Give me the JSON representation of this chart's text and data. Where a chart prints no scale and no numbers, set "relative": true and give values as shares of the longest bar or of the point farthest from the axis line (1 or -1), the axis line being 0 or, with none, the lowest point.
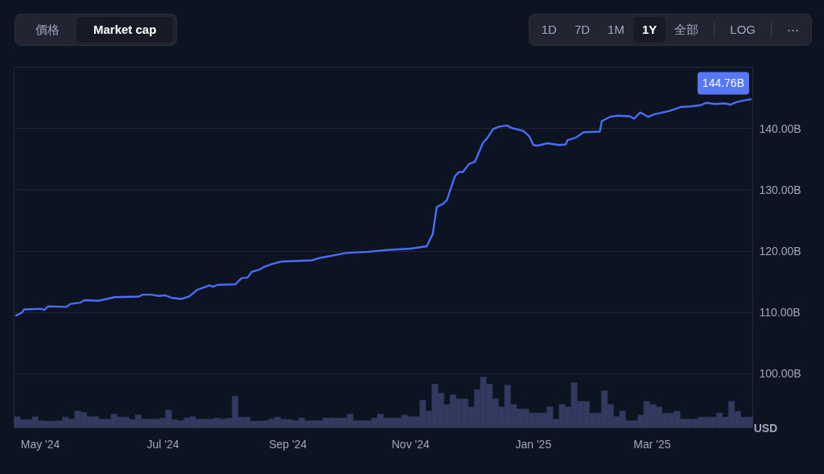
{
  "chart_data": [
    {
      "type": "line",
      "color": "#4a6cf7",
      "x": [
        "2024-04-19",
        "2024-04-22",
        "2024-04-23",
        "2024-05-01",
        "2024-05-03",
        "2024-05-05",
        "2024-05-14",
        "2024-05-16",
        "2024-05-21",
        "2024-05-23",
        "2024-05-30",
        "2024-06-07",
        "2024-06-19",
        "2024-06-21",
        "2024-06-25",
        "2024-06-29",
        "2024-07-02",
        "2024-07-05",
        "2024-07-10",
        "2024-07-14",
        "2024-07-18",
        "2024-07-24",
        "2024-07-26",
        "2024-07-28",
        "2024-08-06",
        "2024-08-09",
        "2024-08-12",
        "2024-08-14",
        "2024-08-18",
        "2024-08-20",
        "2024-08-24",
        "2024-08-29",
        "2024-09-13",
        "2024-09-17",
        "2024-09-30",
        "2024-10-11",
        "2024-10-21",
        "2024-11-01",
        "2024-11-09",
        "2024-11-12",
        "2024-11-14",
        "2024-11-17",
        "2024-11-19",
        "2024-11-23",
        "2024-11-25",
        "2024-11-27",
        "2024-11-30",
        "2024-12-03",
        "2024-12-07",
        "2024-12-09",
        "2024-12-12",
        "2024-12-15",
        "2024-12-19",
        "2024-12-21",
        "2024-12-27",
        "2024-12-30",
        "2025-01-01",
        "2025-01-03",
        "2025-01-08",
        "2025-01-14",
        "2025-01-17",
        "2025-01-18",
        "2025-01-22",
        "2025-01-26",
        "2025-02-03",
        "2025-02-04",
        "2025-02-08",
        "2025-02-12",
        "2025-02-18",
        "2025-02-20",
        "2025-02-23",
        "2025-02-25",
        "2025-02-27",
        "2025-03-02",
        "2025-03-10",
        "2025-03-15",
        "2025-03-20",
        "2025-03-25",
        "2025-03-28",
        "2025-04-01",
        "2025-04-06",
        "2025-04-09",
        "2025-04-12",
        "2025-04-16",
        "2025-04-19"
      ],
      "values": [
        109.5,
        110.0,
        110.5,
        110.6,
        110.4,
        111.0,
        110.9,
        111.4,
        111.6,
        112.0,
        111.9,
        112.5,
        112.6,
        112.9,
        112.9,
        112.7,
        112.8,
        112.4,
        112.2,
        112.6,
        113.7,
        114.4,
        114.2,
        114.5,
        114.6,
        115.6,
        115.7,
        116.6,
        117.0,
        117.4,
        117.9,
        118.3,
        118.5,
        118.9,
        119.7,
        119.9,
        120.2,
        120.4,
        120.8,
        122.8,
        127.2,
        127.7,
        128.3,
        132.2,
        132.9,
        132.9,
        134.2,
        134.6,
        137.7,
        138.4,
        139.9,
        140.3,
        140.5,
        140.1,
        139.6,
        138.7,
        137.3,
        137.2,
        137.6,
        137.3,
        137.4,
        138.1,
        138.5,
        139.4,
        139.5,
        141.2,
        141.9,
        142.1,
        142.0,
        141.6,
        142.6,
        142.3,
        141.9,
        142.3,
        142.9,
        143.5,
        143.6,
        143.8,
        144.2,
        144.0,
        144.1,
        143.9,
        144.3,
        144.6,
        144.76
      ],
      "xlim": [
        "2024-04-18",
        "2025-04-20"
      ],
      "ylim": [
        91.2,
        150
      ],
      "xticks": [
        {
          "value": "2024-05-01",
          "label": "May '24"
        },
        {
          "value": "2024-07-01",
          "label": "Jul '24"
        },
        {
          "value": "2024-09-01",
          "label": "Sep '24"
        },
        {
          "value": "2024-11-01",
          "label": "Nov '24"
        },
        {
          "value": "2025-01-01",
          "label": "Jan '25"
        },
        {
          "value": "2025-03-01",
          "label": "Mar '25"
        }
      ],
      "yticks": [
        {
          "value": 100,
          "label": "100.00B"
        },
        {
          "value": 110,
          "label": "110.00B"
        },
        {
          "value": 120,
          "label": "120.00B"
        },
        {
          "value": 130,
          "label": "130.00B"
        },
        {
          "value": 140,
          "label": "140.00B"
        }
      ],
      "grid": "y",
      "ylabel": "USD",
      "annotations": [
        "價格",
        "Market cap",
        "1D",
        "7D",
        "1M",
        "1Y",
        "全部",
        "LOG",
        "⋯",
        {
          "text": "144.76B",
          "x": "2025-04-19",
          "y": 144.76
        }
      ]
    },
    {
      "type": "bar",
      "relative": true,
      "color": "#323a5f",
      "categories": [
        null,
        null,
        null,
        null,
        null,
        null,
        null,
        null,
        null,
        null,
        null,
        null,
        null,
        null,
        null,
        null,
        null,
        null,
        null,
        null,
        null,
        null,
        null,
        null,
        null,
        null,
        null,
        null,
        null,
        null,
        null,
        null,
        null,
        null,
        null,
        null,
        null,
        null,
        null,
        null,
        null,
        null,
        null,
        null,
        null,
        null,
        null,
        null,
        null,
        null,
        null,
        null,
        null,
        null,
        null,
        null,
        null,
        null,
        null,
        null,
        null,
        null,
        null,
        null,
        null,
        null,
        null,
        null,
        null,
        null,
        null,
        null,
        null,
        null,
        null,
        null,
        null,
        null,
        null,
        null,
        null,
        null,
        null,
        null,
        null,
        null,
        null,
        null,
        null,
        null,
        null,
        null,
        null,
        null,
        null,
        null,
        null,
        null,
        null,
        null,
        null,
        null,
        null,
        null,
        null,
        null,
        null,
        null,
        null,
        null,
        null,
        null,
        null,
        null,
        null,
        null,
        null,
        null,
        null,
        null,
        null,
        null
      ],
      "values": [
        0.22,
        0.16,
        0.16,
        0.22,
        0.14,
        0.13,
        0.13,
        0.14,
        0.21,
        0.17,
        0.33,
        0.3,
        0.22,
        0.22,
        0.17,
        0.17,
        0.27,
        0.21,
        0.21,
        0.16,
        0.25,
        0.17,
        0.17,
        0.17,
        0.19,
        0.35,
        0.16,
        0.14,
        0.19,
        0.22,
        0.17,
        0.17,
        0.17,
        0.19,
        0.17,
        0.19,
        0.62,
        0.21,
        0.21,
        0.13,
        0.13,
        0.14,
        0.17,
        0.21,
        0.17,
        0.16,
        0.14,
        0.19,
        0.14,
        0.14,
        0.14,
        0.19,
        0.19,
        0.19,
        0.19,
        0.27,
        0.14,
        0.14,
        0.14,
        0.19,
        0.27,
        0.19,
        0.19,
        0.19,
        0.25,
        0.22,
        0.22,
        0.54,
        0.33,
        0.86,
        0.68,
        0.46,
        0.65,
        0.57,
        0.57,
        0.41,
        0.75,
        1,
        0.86,
        0.57,
        0.41,
        0.84,
        0.46,
        0.37,
        0.37,
        0.29,
        0.29,
        0.29,
        0.41,
        0.17,
        0.46,
        0.41,
        0.89,
        0.52,
        0.52,
        0.29,
        0.29,
        0.73,
        0.46,
        0.22,
        0.33,
        0.14,
        0.14,
        0.25,
        0.52,
        0.46,
        0.41,
        0.29,
        0.29,
        0.33,
        0.17,
        0.17,
        0.17,
        0.21,
        0.21,
        0.21,
        0.29,
        0.21,
        0.52,
        0.32,
        0.21,
        0.21
      ]
    }
  ]
}
